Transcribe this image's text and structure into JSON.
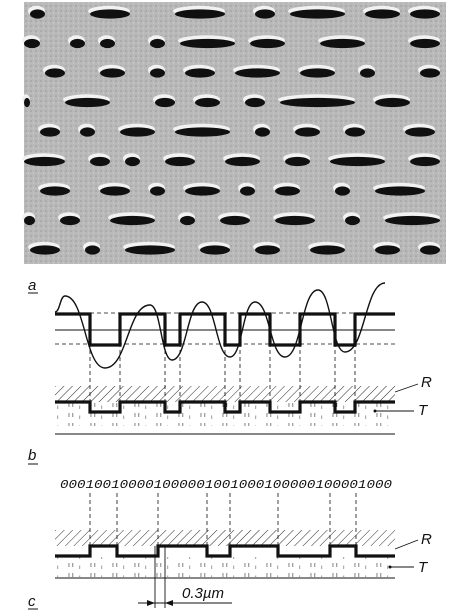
{
  "panels": {
    "a": {
      "label": "a"
    },
    "b": {
      "label": "b",
      "layer_labels": {
        "reflective": "R",
        "substrate": "T"
      }
    },
    "c": {
      "label": "c",
      "bit_sequence": "000100100001000001001000100000100001000",
      "layer_labels": {
        "reflective": "R",
        "substrate": "T"
      },
      "dimension_label": "0.3µm"
    }
  },
  "colors": {
    "photo_bg": "#b9b9b9",
    "pit": "#101010",
    "pit_highlight": "#f2f2f2",
    "ink": "#111111"
  }
}
